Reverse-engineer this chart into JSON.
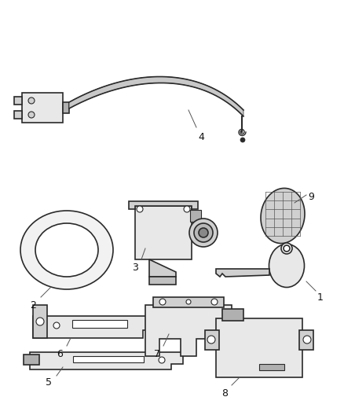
{
  "background_color": "#ffffff",
  "figsize": [
    4.38,
    5.33
  ],
  "dpi": 100,
  "line_color": "#2a2a2a",
  "fill_light": "#e8e8e8",
  "fill_mid": "#d0d0d0",
  "fill_dark": "#b0b0b0"
}
